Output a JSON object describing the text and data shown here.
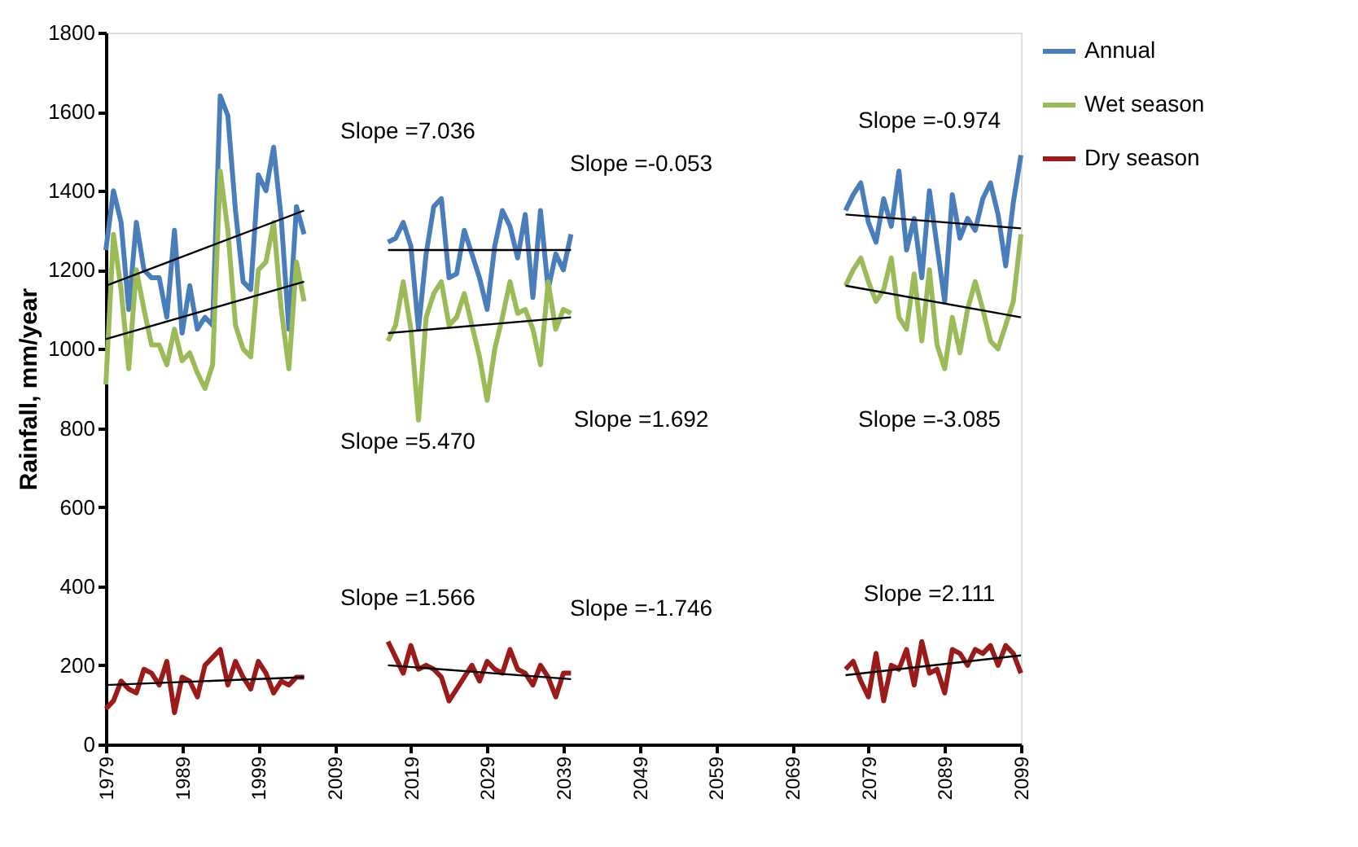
{
  "chart_data": {
    "type": "line",
    "ylabel": "Rainfall, mm/year",
    "xlim": [
      1979,
      2099
    ],
    "xticks": [
      1979,
      1989,
      1999,
      2009,
      2019,
      2029,
      2039,
      2049,
      2059,
      2069,
      2079,
      2089,
      2099
    ],
    "ylim": [
      0,
      1800
    ],
    "yticks": [
      0,
      200,
      400,
      600,
      800,
      1000,
      1200,
      1400,
      1600,
      1800
    ],
    "grid": false,
    "legend": "right",
    "marker": "none",
    "line_style": "solid",
    "series": [
      {
        "name": "Annual",
        "color": "#4a7ebb",
        "x": [
          1979,
          1980,
          1981,
          1982,
          1983,
          1984,
          1985,
          1986,
          1987,
          1988,
          1989,
          1990,
          1991,
          1992,
          1993,
          1994,
          1995,
          1996,
          1997,
          1998,
          1999,
          2000,
          2001,
          2002,
          2003,
          2004,
          2005,
          2006,
          2016,
          2017,
          2018,
          2019,
          2020,
          2021,
          2022,
          2023,
          2024,
          2025,
          2026,
          2027,
          2028,
          2029,
          2030,
          2031,
          2032,
          2033,
          2034,
          2035,
          2036,
          2037,
          2038,
          2039,
          2040,
          2041,
          2076,
          2077,
          2078,
          2079,
          2080,
          2081,
          2082,
          2083,
          2084,
          2085,
          2086,
          2087,
          2088,
          2089,
          2090,
          2091,
          2092,
          2093,
          2094,
          2095,
          2096,
          2097,
          2098,
          2099
        ],
        "values": [
          1250,
          1400,
          1320,
          1100,
          1320,
          1200,
          1180,
          1180,
          1080,
          1300,
          1040,
          1160,
          1050,
          1080,
          1060,
          1640,
          1590,
          1350,
          1170,
          1150,
          1440,
          1400,
          1510,
          1330,
          1050,
          1360,
          1290,
          null,
          1270,
          1280,
          1320,
          1260,
          1050,
          1240,
          1360,
          1380,
          1180,
          1190,
          1300,
          1240,
          1180,
          1100,
          1260,
          1350,
          1310,
          1230,
          1340,
          1130,
          1350,
          1150,
          1240,
          1200,
          1290,
          null,
          1350,
          1390,
          1420,
          1320,
          1270,
          1380,
          1310,
          1450,
          1250,
          1330,
          1180,
          1400,
          1260,
          1120,
          1390,
          1280,
          1330,
          1300,
          1380,
          1420,
          1340,
          1210,
          1370,
          1490
        ]
      },
      {
        "name": "Wet season",
        "color": "#9bbb59",
        "x": [
          1979,
          1980,
          1981,
          1982,
          1983,
          1984,
          1985,
          1986,
          1987,
          1988,
          1989,
          1990,
          1991,
          1992,
          1993,
          1994,
          1995,
          1996,
          1997,
          1998,
          1999,
          2000,
          2001,
          2002,
          2003,
          2004,
          2005,
          2006,
          2016,
          2017,
          2018,
          2019,
          2020,
          2021,
          2022,
          2023,
          2024,
          2025,
          2026,
          2027,
          2028,
          2029,
          2030,
          2031,
          2032,
          2033,
          2034,
          2035,
          2036,
          2037,
          2038,
          2039,
          2040,
          2041,
          2076,
          2077,
          2078,
          2079,
          2080,
          2081,
          2082,
          2083,
          2084,
          2085,
          2086,
          2087,
          2088,
          2089,
          2090,
          2091,
          2092,
          2093,
          2094,
          2095,
          2096,
          2097,
          2098,
          2099
        ],
        "values": [
          910,
          1290,
          1150,
          950,
          1200,
          1100,
          1010,
          1010,
          960,
          1050,
          970,
          990,
          940,
          900,
          960,
          1450,
          1300,
          1060,
          1000,
          980,
          1200,
          1220,
          1320,
          1100,
          950,
          1220,
          1120,
          null,
          1020,
          1060,
          1170,
          1050,
          820,
          1080,
          1140,
          1170,
          1060,
          1080,
          1140,
          1060,
          980,
          870,
          1000,
          1080,
          1170,
          1090,
          1100,
          1050,
          960,
          1170,
          1050,
          1100,
          1090,
          null,
          1160,
          1200,
          1230,
          1170,
          1120,
          1150,
          1230,
          1080,
          1050,
          1190,
          1020,
          1200,
          1010,
          950,
          1080,
          990,
          1100,
          1170,
          1100,
          1020,
          1000,
          1060,
          1120,
          1290
        ]
      },
      {
        "name": "Dry season",
        "color": "#9b1b1b",
        "x": [
          1979,
          1980,
          1981,
          1982,
          1983,
          1984,
          1985,
          1986,
          1987,
          1988,
          1989,
          1990,
          1991,
          1992,
          1993,
          1994,
          1995,
          1996,
          1997,
          1998,
          1999,
          2000,
          2001,
          2002,
          2003,
          2004,
          2005,
          2006,
          2016,
          2017,
          2018,
          2019,
          2020,
          2021,
          2022,
          2023,
          2024,
          2025,
          2026,
          2027,
          2028,
          2029,
          2030,
          2031,
          2032,
          2033,
          2034,
          2035,
          2036,
          2037,
          2038,
          2039,
          2040,
          2041,
          2076,
          2077,
          2078,
          2079,
          2080,
          2081,
          2082,
          2083,
          2084,
          2085,
          2086,
          2087,
          2088,
          2089,
          2090,
          2091,
          2092,
          2093,
          2094,
          2095,
          2096,
          2097,
          2098,
          2099
        ],
        "values": [
          90,
          110,
          160,
          140,
          130,
          190,
          180,
          150,
          210,
          80,
          170,
          160,
          120,
          200,
          220,
          240,
          150,
          210,
          170,
          140,
          210,
          180,
          130,
          160,
          150,
          170,
          170,
          null,
          260,
          220,
          180,
          250,
          190,
          200,
          190,
          170,
          110,
          140,
          170,
          200,
          160,
          210,
          190,
          180,
          240,
          190,
          180,
          150,
          200,
          170,
          120,
          180,
          180,
          null,
          190,
          210,
          160,
          120,
          230,
          110,
          200,
          190,
          240,
          150,
          260,
          180,
          190,
          130,
          240,
          230,
          200,
          240,
          230,
          250,
          200,
          250,
          230,
          180
        ]
      },
      {
        "type": "line",
        "color": "#000000",
        "x": [
          1979,
          2005
        ],
        "values": [
          1160,
          1350
        ]
      },
      {
        "type": "line",
        "color": "#000000",
        "x": [
          1979,
          2005
        ],
        "values": [
          1025,
          1170
        ]
      },
      {
        "type": "line",
        "color": "#000000",
        "x": [
          1979,
          2005
        ],
        "values": [
          150,
          170
        ]
      },
      {
        "type": "line",
        "color": "#000000",
        "x": [
          2016,
          2040
        ],
        "values": [
          1250,
          1250
        ]
      },
      {
        "type": "line",
        "color": "#000000",
        "x": [
          2016,
          2040
        ],
        "values": [
          1040,
          1080
        ]
      },
      {
        "type": "line",
        "color": "#000000",
        "x": [
          2016,
          2040
        ],
        "values": [
          200,
          165
        ]
      },
      {
        "type": "line",
        "color": "#000000",
        "x": [
          2076,
          2099
        ],
        "values": [
          1340,
          1305
        ]
      },
      {
        "type": "line",
        "color": "#000000",
        "x": [
          2076,
          2099
        ],
        "values": [
          1160,
          1080
        ]
      },
      {
        "type": "line",
        "color": "#000000",
        "x": [
          2076,
          2099
        ],
        "values": [
          175,
          225
        ]
      }
    ],
    "annotations": [
      "Slope =7.036",
      "Slope =-0.053",
      "Slope =-0.974",
      "Slope =5.470",
      "Slope =1.692",
      "Slope =-3.085",
      "Slope =1.566",
      "Slope =-1.746",
      "Slope =2.111"
    ]
  }
}
